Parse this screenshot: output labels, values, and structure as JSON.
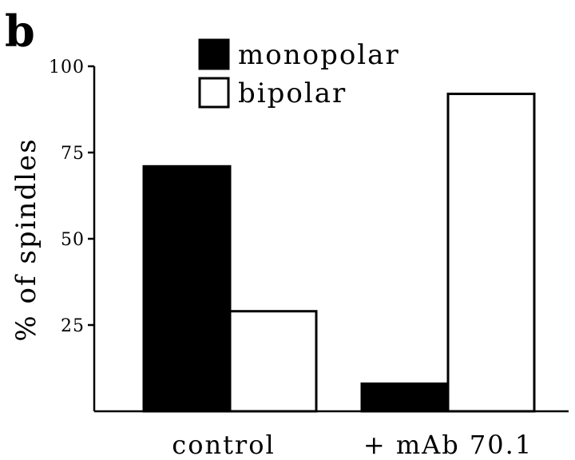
{
  "panel_label": "b",
  "chart_data": {
    "type": "bar",
    "ylabel": "% of spindles",
    "xlabel": "",
    "ylim": [
      0,
      100
    ],
    "yticks": [
      25,
      50,
      75,
      100
    ],
    "categories": [
      "control",
      "+ mAb 70.1"
    ],
    "series": [
      {
        "name": "monopolar",
        "values": [
          71,
          8
        ],
        "color": "#000000"
      },
      {
        "name": "bipolar",
        "values": [
          29,
          92
        ],
        "color": "#ffffff"
      }
    ],
    "legend_position": "top"
  }
}
